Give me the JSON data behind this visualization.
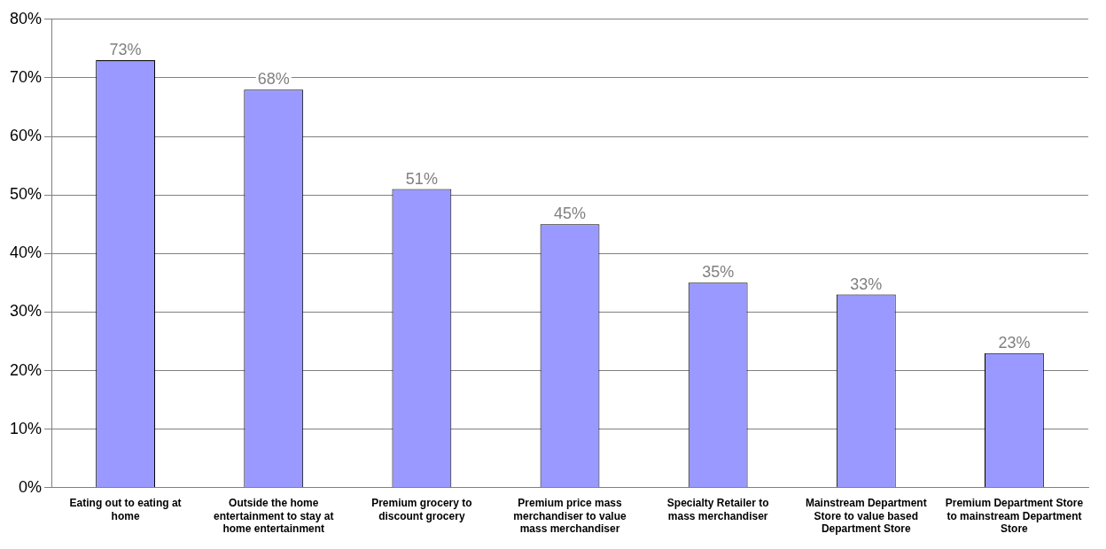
{
  "chart_data": {
    "type": "bar",
    "categories": [
      "Eating out to eating at home",
      "Outside the home entertainment to stay at home entertainment",
      "Premium grocery to discount grocery",
      "Premium price mass merchandiser to value mass merchandiser",
      "Specialty Retailer to mass merchandiser",
      "Mainstream Department Store to value based Department Store",
      "Premium Department Store to mainstream Department Store"
    ],
    "values": [
      73,
      68,
      51,
      45,
      35,
      33,
      23
    ],
    "value_labels": [
      "73%",
      "68%",
      "51%",
      "45%",
      "35%",
      "33%",
      "23%"
    ],
    "color": "#9999ff",
    "ylim": [
      0,
      80
    ],
    "yticks": [
      {
        "value": 0,
        "label": "0%"
      },
      {
        "value": 10,
        "label": "10%"
      },
      {
        "value": 20,
        "label": "20%"
      },
      {
        "value": 30,
        "label": "30%"
      },
      {
        "value": 40,
        "label": "40%"
      },
      {
        "value": 50,
        "label": "50%"
      },
      {
        "value": 60,
        "label": "60%"
      },
      {
        "value": 70,
        "label": "70%"
      },
      {
        "value": 80,
        "label": "80%"
      }
    ],
    "grid": "y",
    "legend": false
  }
}
